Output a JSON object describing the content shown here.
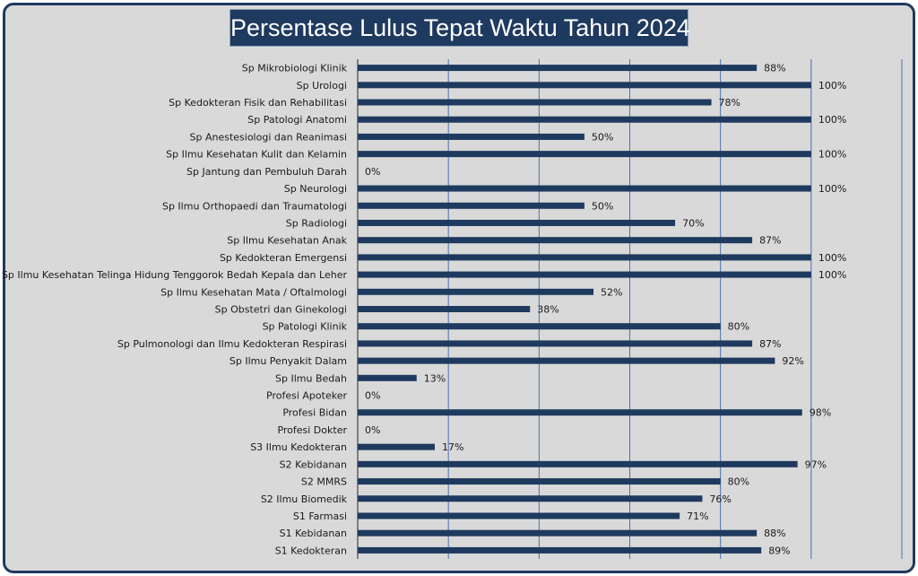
{
  "title": "Persentase Lulus Tepat Waktu Tahun 2024",
  "chart_data": {
    "type": "bar",
    "orientation": "horizontal",
    "title": "Persentase Lulus Tepat Waktu Tahun 2024",
    "xlim": [
      0,
      120
    ],
    "grid": true,
    "bar_color": "#1f3a5f",
    "value_suffix": "%",
    "categories": [
      "Sp Mikrobiologi Klinik",
      "Sp Urologi",
      "Sp Kedokteran Fisik dan Rehabilitasi",
      "Sp Patologi Anatomi",
      "Sp Anestesiologi dan Reanimasi",
      "Sp Ilmu Kesehatan Kulit dan Kelamin",
      "Sp Jantung dan Pembuluh Darah",
      "Sp Neurologi",
      "Sp Ilmu Orthopaedi dan Traumatologi",
      "Sp Radiologi",
      "Sp Ilmu Kesehatan Anak",
      "Sp Kedokteran Emergensi",
      "Sp Ilmu Kesehatan Telinga Hidung Tenggorok Bedah Kepala dan Leher",
      "Sp Ilmu Kesehatan Mata / Oftalmologi",
      "Sp Obstetri dan Ginekologi",
      "Sp Patologi Klinik",
      "Sp Pulmonologi dan Ilmu Kedokteran Respirasi",
      "Sp Ilmu Penyakit Dalam",
      "Sp Ilmu Bedah",
      "Profesi Apoteker",
      "Profesi Bidan",
      "Profesi Dokter",
      "S3 Ilmu Kedokteran",
      "S2 Kebidanan",
      "S2 MMRS",
      "S2 Ilmu Biomedik",
      "S1 Farmasi",
      "S1 Kebidanan",
      "S1 Kedokteran"
    ],
    "values": [
      88,
      100,
      78,
      100,
      50,
      100,
      0,
      100,
      50,
      70,
      87,
      100,
      100,
      52,
      38,
      80,
      87,
      92,
      13,
      0,
      98,
      0,
      17,
      97,
      80,
      76,
      71,
      88,
      89
    ]
  }
}
